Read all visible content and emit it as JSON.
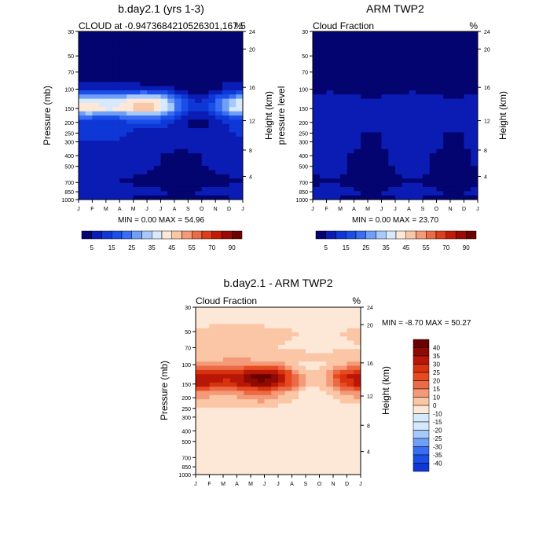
{
  "figure": {
    "months": [
      "J",
      "F",
      "M",
      "A",
      "M",
      "J",
      "J",
      "A",
      "S",
      "O",
      "N",
      "D",
      "J"
    ],
    "pressure_ticks": [
      30,
      50,
      70,
      100,
      150,
      200,
      250,
      300,
      400,
      500,
      700,
      850,
      1000
    ],
    "height_ticks": [
      24,
      20,
      16,
      12,
      8,
      4
    ]
  },
  "chart_data": [
    {
      "type": "heatmap",
      "title": "b.day2.1 (yrs 1-3)",
      "subtitle_left": "CLOUD at -0.9473684210526301,167.5",
      "subtitle_right": "%",
      "xlabel": "",
      "ylabel": "Pressure (mb)",
      "ylabel_right": "Height (km)",
      "stats": "MIN =   0.00 MAX =  54.96",
      "levels": [
        5,
        10,
        15,
        20,
        25,
        30,
        35,
        40,
        45,
        50,
        55,
        60,
        70,
        80,
        90
      ],
      "labelbar_labels": [
        "5",
        "15",
        "25",
        "35",
        "45",
        "55",
        "70",
        "90"
      ],
      "colors": [
        "#03046f",
        "#0a1cb4",
        "#0f37d6",
        "#1a4ee8",
        "#3a6ef2",
        "#6f9ff7",
        "#a6c8fb",
        "#d8e9fe",
        "#fde8d7",
        "#fbc6a6",
        "#f49a78",
        "#ec6b47",
        "#de3e1c",
        "#c11b07",
        "#9a0a02",
        "#6e0000"
      ],
      "stats_min": 0.0,
      "stats_max": 54.96,
      "profile": {
        "pressure": [
          30,
          50,
          70,
          100,
          125,
          150,
          175,
          200,
          250,
          300,
          400,
          500,
          700,
          850,
          1000
        ],
        "value": [
          0,
          0,
          0.5,
          7,
          30,
          35,
          18,
          11,
          9,
          8,
          6,
          6,
          4,
          7,
          4
        ]
      }
    },
    {
      "type": "heatmap",
      "title": "ARM TWP2",
      "subtitle_left": "Cloud Fraction",
      "subtitle_right": "%",
      "xlabel": "",
      "ylabel": "pressure level",
      "ylabel_right": "Height (km)",
      "stats": "MIN =   0.00 MAX =  23.70",
      "levels": [
        5,
        10,
        15,
        20,
        25,
        30,
        35,
        40,
        45,
        50,
        55,
        60,
        70,
        80,
        90
      ],
      "labelbar_labels": [
        "5",
        "15",
        "25",
        "35",
        "45",
        "55",
        "70",
        "90"
      ],
      "colors": [
        "#03046f",
        "#0a1cb4",
        "#0f37d6",
        "#1a4ee8",
        "#3a6ef2",
        "#6f9ff7",
        "#a6c8fb",
        "#d8e9fe",
        "#fde8d7",
        "#fbc6a6",
        "#f49a78",
        "#ec6b47",
        "#de3e1c",
        "#c11b07",
        "#9a0a02",
        "#6e0000"
      ],
      "stats_min": 0.0,
      "stats_max": 23.7,
      "profile": {
        "pressure": [
          30,
          50,
          70,
          100,
          125,
          150,
          175,
          200,
          250,
          300,
          400,
          500,
          700,
          850,
          1000
        ],
        "value": [
          0,
          0,
          0.5,
          3,
          7,
          8,
          8,
          7,
          6,
          6,
          5,
          5,
          4,
          6,
          4
        ]
      }
    },
    {
      "type": "heatmap",
      "title": "b.day2.1 - ARM TWP2",
      "subtitle_left": "Cloud Fraction",
      "subtitle_right": "%",
      "xlabel": "",
      "ylabel": "Pressure (mb)",
      "ylabel_right": "Height (km)",
      "stats": "MIN =  -8.70 MAX =  50.27",
      "levels": [
        -40,
        -35,
        -30,
        -25,
        -20,
        -15,
        -10,
        -5,
        0,
        5,
        10,
        15,
        20,
        25,
        30,
        35,
        40
      ],
      "labelbar_labels": [
        "40",
        "35",
        "30",
        "25",
        "20",
        "15",
        "10",
        "0",
        "-10",
        "-15",
        "-20",
        "-25",
        "-30",
        "-35",
        "-40"
      ],
      "colors": [
        "#03046f",
        "#0a1cb4",
        "#0f37d6",
        "#1a4ee8",
        "#3a6ef2",
        "#6f9ff7",
        "#a6c8fb",
        "#d5e9fd",
        "#d5e9fd",
        "#fde8d7",
        "#fbc6a6",
        "#f49a78",
        "#ec6b47",
        "#e84a20",
        "#d8320e",
        "#b81707",
        "#8f0a02",
        "#6a0000"
      ],
      "stats_min": -8.7,
      "stats_max": 50.27,
      "profile": {
        "pressure": [
          30,
          50,
          70,
          100,
          125,
          150,
          175,
          200,
          250,
          300,
          400,
          500,
          700,
          850,
          1000
        ],
        "value": [
          0,
          6,
          5,
          10,
          28,
          26,
          12,
          8,
          4,
          3,
          2,
          1,
          1,
          2,
          1
        ]
      }
    }
  ]
}
